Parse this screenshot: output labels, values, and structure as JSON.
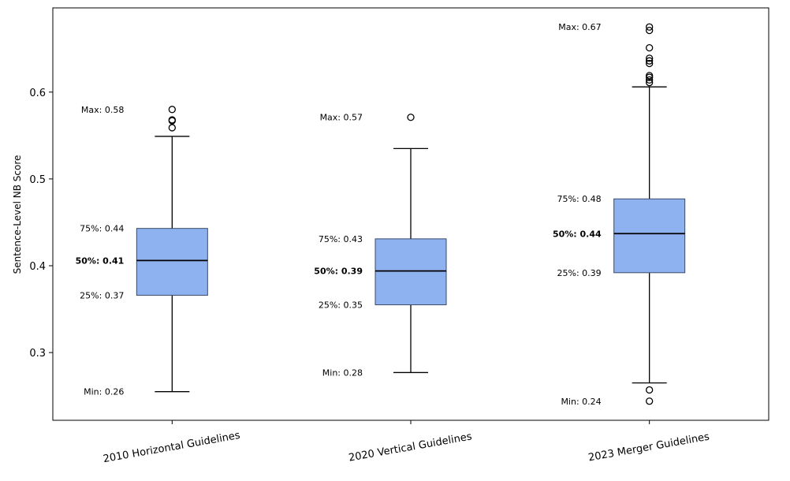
{
  "chart_data": {
    "type": "box",
    "title": "",
    "xlabel": "",
    "ylabel": "Sentence-Level NB Score",
    "ylim": [
      0.222,
      0.697
    ],
    "yticks": [
      0.3,
      0.4,
      0.5,
      0.6
    ],
    "ytick_labels": [
      "0.3",
      "0.4",
      "0.5",
      "0.6"
    ],
    "grid": false,
    "box_color": "#8eb1ef",
    "categories": [
      "2010 Horizontal Guidelines",
      "2020 Vertical Guidelines",
      "2023 Merger Guidelines"
    ],
    "boxes": [
      {
        "name": "2010 Horizontal Guidelines",
        "whisker_low": 0.255,
        "q1": 0.366,
        "median": 0.406,
        "q3": 0.443,
        "whisker_high": 0.549,
        "outliers": [
          0.559,
          0.567,
          0.568,
          0.58
        ],
        "labels": {
          "max": "Max: 0.58",
          "q3": "75%: 0.44",
          "median": "50%: 0.41",
          "q1": "25%: 0.37",
          "min": "Min: 0.26"
        },
        "label_values": {
          "max": 0.58,
          "q3": 0.443,
          "median": 0.406,
          "q1": 0.366,
          "min": 0.255
        }
      },
      {
        "name": "2020 Vertical Guidelines",
        "whisker_low": 0.277,
        "q1": 0.355,
        "median": 0.394,
        "q3": 0.431,
        "whisker_high": 0.535,
        "outliers": [
          0.571
        ],
        "labels": {
          "max": "Max: 0.57",
          "q3": "75%: 0.43",
          "median": "50%: 0.39",
          "q1": "25%: 0.35",
          "min": "Min: 0.28"
        },
        "label_values": {
          "max": 0.571,
          "q3": 0.431,
          "median": 0.394,
          "q1": 0.355,
          "min": 0.277
        }
      },
      {
        "name": "2023 Merger Guidelines",
        "whisker_low": 0.265,
        "q1": 0.392,
        "median": 0.437,
        "q3": 0.477,
        "whisker_high": 0.606,
        "outliers": [
          0.675,
          0.671,
          0.651,
          0.639,
          0.636,
          0.633,
          0.619,
          0.617,
          0.614,
          0.611,
          0.257,
          0.244
        ],
        "labels": {
          "max": "Max: 0.67",
          "q3": "75%: 0.48",
          "median": "50%: 0.44",
          "q1": "25%: 0.39",
          "min": "Min: 0.24"
        },
        "label_values": {
          "max": 0.675,
          "q3": 0.477,
          "median": 0.437,
          "q1": 0.392,
          "min": 0.244
        }
      }
    ]
  }
}
